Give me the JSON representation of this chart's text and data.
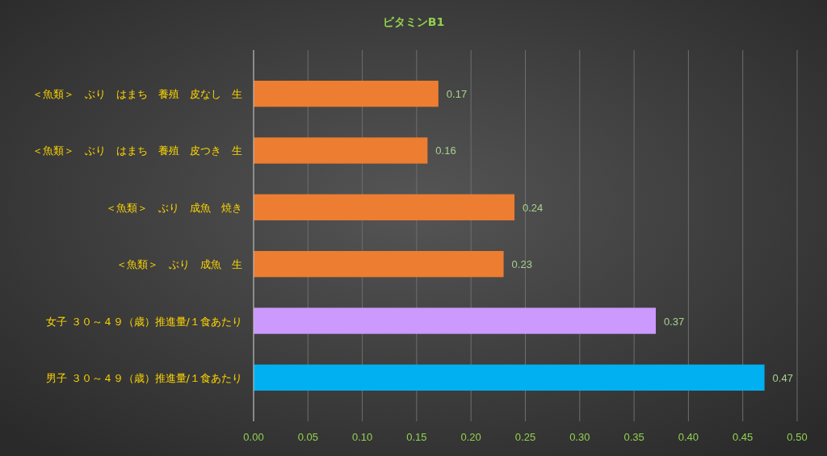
{
  "chart_data": {
    "type": "bar",
    "orientation": "horizontal",
    "title": "ビタミンB1",
    "categories": [
      "＜魚類＞　ぶり　はまち　養殖　皮なし　生",
      "＜魚類＞　ぶり　はまち　養殖　皮つき　生",
      "＜魚類＞　ぶり　成魚　焼き",
      "＜魚類＞　ぶり　成魚　生",
      "女子 ３０～４９（歳）推進量/１食あたり",
      "男子 ３０～４９（歳）推進量/１食あたり"
    ],
    "values": [
      0.17,
      0.16,
      0.24,
      0.23,
      0.37,
      0.47
    ],
    "colors": [
      "#ed7d31",
      "#ed7d31",
      "#ed7d31",
      "#ed7d31",
      "#cc99ff",
      "#00b0f0"
    ],
    "xlim": [
      0,
      0.5
    ],
    "xticks": [
      {
        "value": 0,
        "label": "0.00"
      },
      {
        "value": 0.05,
        "label": "0.05"
      },
      {
        "value": 0.1,
        "label": "0.10"
      },
      {
        "value": 0.15,
        "label": "0.15"
      },
      {
        "value": 0.2,
        "label": "0.20"
      },
      {
        "value": 0.25,
        "label": "0.25"
      },
      {
        "value": 0.3,
        "label": "0.30"
      },
      {
        "value": 0.35,
        "label": "0.35"
      },
      {
        "value": 0.4,
        "label": "0.40"
      },
      {
        "value": 0.45,
        "label": "0.45"
      },
      {
        "value": 0.5,
        "label": "0.50"
      }
    ],
    "grid": "x",
    "data_labels": true
  }
}
